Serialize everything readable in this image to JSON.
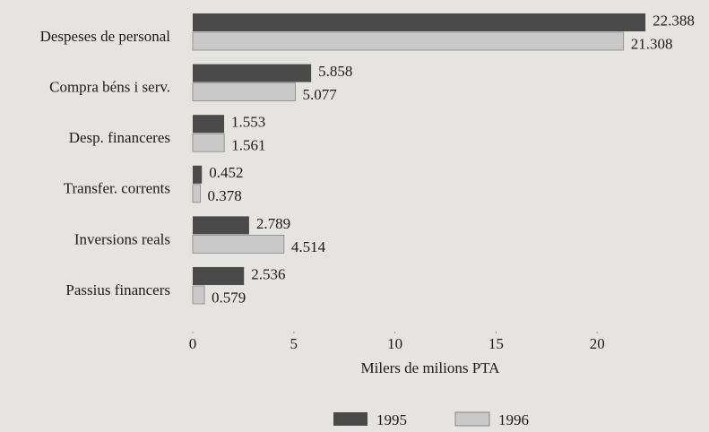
{
  "chart_data": {
    "type": "hbar",
    "categories": [
      "Despeses de personal",
      "Compra béns i serv.",
      "Desp. financeres",
      "Transfer. corrents",
      "Inversions reals",
      "Passius financers"
    ],
    "series": [
      {
        "name": "1995",
        "color": "#4a4a4a",
        "values": [
          22.388,
          5.858,
          1.553,
          0.452,
          2.789,
          2.536
        ]
      },
      {
        "name": "1996",
        "color": "#c9c9c9",
        "values": [
          21.308,
          5.077,
          1.561,
          0.378,
          4.514,
          0.579
        ]
      }
    ],
    "xlabel": "Milers de milions PTA",
    "xlim": [
      0,
      22.5
    ],
    "xticks": [
      0,
      5,
      10,
      15,
      20
    ],
    "grid": false,
    "legend": "bottom"
  }
}
